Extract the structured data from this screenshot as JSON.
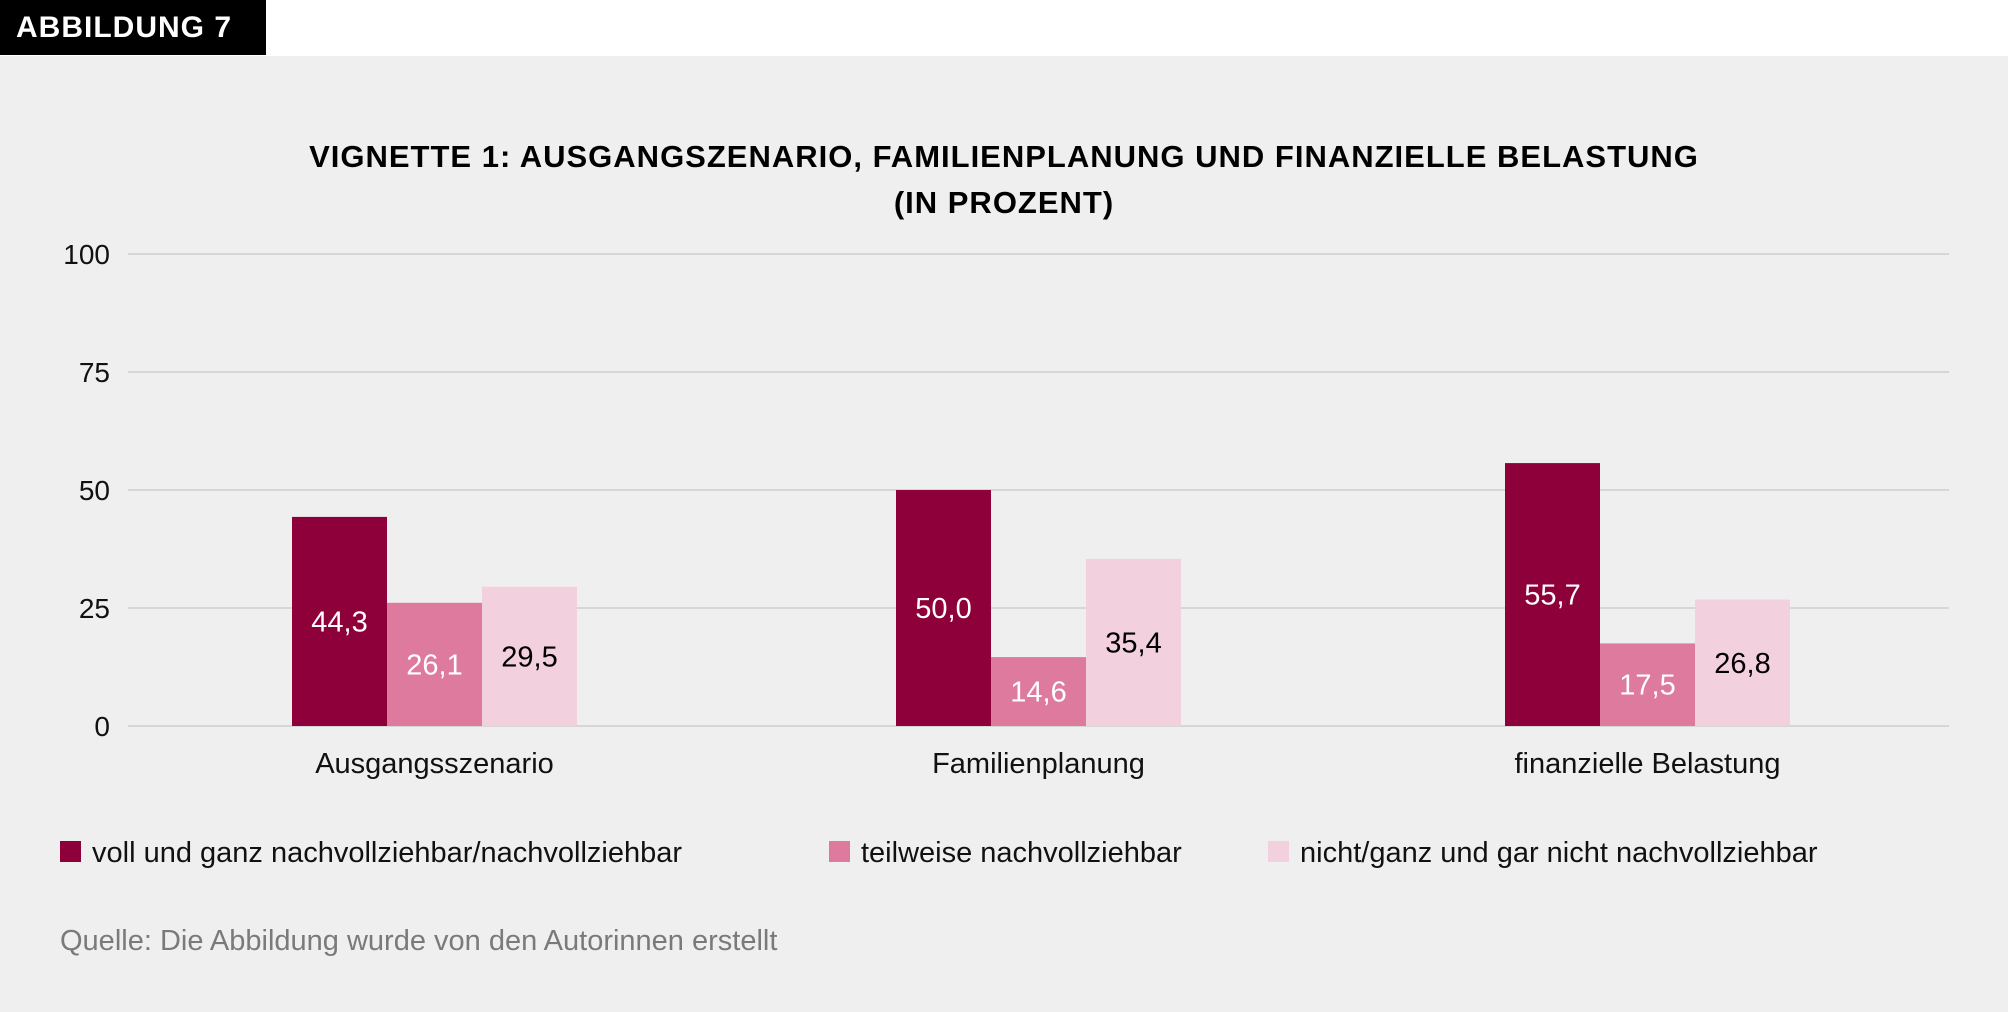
{
  "header_label": "ABBILDUNG 7",
  "source": "Quelle: Die Abbildung wurde von den Autorinnen erstellt",
  "chart_data": {
    "type": "bar",
    "title_lines": [
      "VIGNETTE 1: AUSGANGSZENARIO, FAMILIENPLANUNG UND FINANZIELLE BELASTUNG",
      "(IN PROZENT)"
    ],
    "categories": [
      "Ausgangsszenario",
      "Familienplanung",
      "finanzielle Belastung"
    ],
    "series": [
      {
        "name": "voll und ganz nachvollziehbar/nachvollziehbar",
        "color": "#8e003a",
        "label_color": "#ffffff",
        "values": [
          44.3,
          50.0,
          55.7
        ],
        "labels": [
          "44,3",
          "50,0",
          "55,7"
        ]
      },
      {
        "name": "teilweise nachvollziehbar",
        "color": "#de7a9d",
        "label_color": "#ffffff",
        "values": [
          26.1,
          14.6,
          17.5
        ],
        "labels": [
          "26,1",
          "14,6",
          "17,5"
        ]
      },
      {
        "name": "nicht/ganz und gar nicht nachvollziehbar",
        "color": "#f3d0dd",
        "label_color": "#000000",
        "values": [
          29.5,
          35.4,
          26.8
        ],
        "labels": [
          "29,5",
          "35,4",
          "26,8"
        ]
      }
    ],
    "ylim": [
      0,
      100
    ],
    "yticks": [
      "0",
      "25",
      "50",
      "75",
      "100"
    ],
    "ytick_values": [
      0,
      25,
      50,
      75,
      100
    ],
    "grid": true,
    "legend": "bottom",
    "xlabel": "",
    "ylabel": ""
  }
}
